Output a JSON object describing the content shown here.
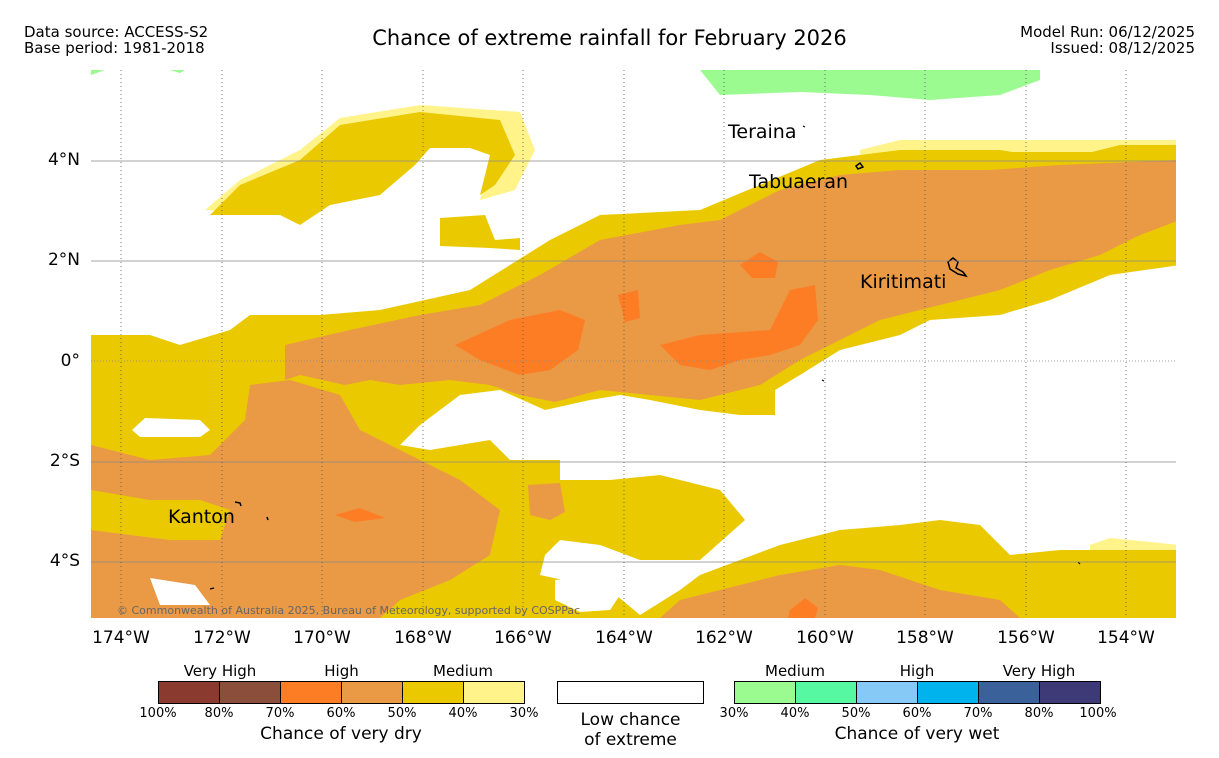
{
  "header": {
    "data_source": "Data source: ACCESS-S2",
    "base_period": "Base period: 1981-2018",
    "title": "Chance of extreme rainfall for February 2026",
    "model_run": "Model Run: 06/12/2025",
    "issued": "Issued: 08/12/2025"
  },
  "map": {
    "lat_labels": [
      "4°N",
      "2°N",
      "0°",
      "2°S",
      "4°S"
    ],
    "lon_labels": [
      "174°W",
      "172°W",
      "170°W",
      "168°W",
      "166°W",
      "164°W",
      "162°W",
      "160°W",
      "158°W",
      "156°W",
      "154°W"
    ],
    "places": [
      "Teraina",
      "Tabuaeran",
      "Kiritimati",
      "Kanton"
    ],
    "copyright": "© Commonwealth of Australia 2025, Bureau of Meteorology, supported by COSPPac",
    "colors": {
      "medium_dry": "#ebc900",
      "high_dry_60": "#ea9945",
      "high_dry_70": "#fd7d25",
      "light_dry": "#fff38a",
      "medium_wet": "#9bfb91"
    }
  },
  "legend": {
    "dry": {
      "categories": [
        "Very High",
        "High",
        "Medium"
      ],
      "ticks": [
        "100%",
        "80%",
        "70%",
        "60%",
        "50%",
        "40%",
        "30%"
      ],
      "colors": [
        "#8b3a2f",
        "#8a4e3a",
        "#fd7d25",
        "#ea9945",
        "#ebc900",
        "#fff38a"
      ],
      "title": "Chance of very dry"
    },
    "low": {
      "line1": "Low chance",
      "line2": "of extreme"
    },
    "wet": {
      "categories": [
        "Medium",
        "High",
        "Very High"
      ],
      "ticks": [
        "30%",
        "40%",
        "50%",
        "60%",
        "70%",
        "80%",
        "100%"
      ],
      "colors": [
        "#9bfb91",
        "#56f9a2",
        "#86c8f6",
        "#00b3ec",
        "#3a619a",
        "#3e3a78"
      ],
      "title": "Chance of very wet"
    }
  }
}
